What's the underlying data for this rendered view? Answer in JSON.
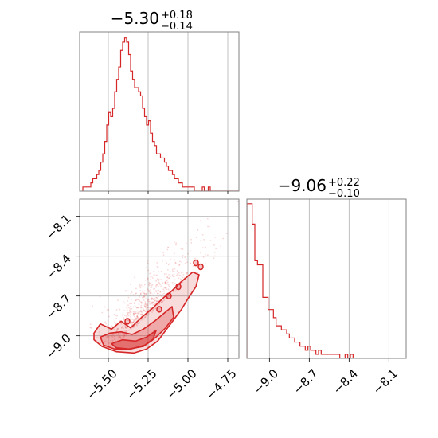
{
  "chart_data": [
    {
      "type": "histogram",
      "panel": "top-left",
      "title": {
        "median": "−5.30",
        "plus": "+0.18",
        "minus": "−0.14"
      },
      "xlim": [
        -5.68,
        -4.68
      ],
      "grid": true,
      "color": "#d62728",
      "bin_width": 0.0125,
      "x_start": -5.66,
      "counts": [
        1,
        1,
        1,
        1,
        2,
        3,
        3,
        4,
        5,
        7,
        9,
        12,
        16,
        19,
        18,
        20,
        24,
        27,
        30,
        34,
        36,
        37,
        36,
        33,
        29,
        27,
        25,
        25,
        24,
        23,
        20,
        18,
        16,
        17,
        14,
        12,
        11,
        9,
        9,
        8,
        8,
        7,
        6,
        5,
        5,
        4,
        3,
        3,
        2,
        2,
        1,
        1,
        1,
        1,
        1,
        1,
        0,
        0,
        0,
        0,
        1,
        0,
        0,
        1,
        0,
        0,
        0,
        0,
        0,
        0,
        0,
        0,
        0,
        0,
        0,
        0,
        0,
        0,
        0,
        0
      ]
    },
    {
      "type": "scatter",
      "panel": "bottom-left",
      "xlim": [
        -5.68,
        -4.68
      ],
      "ylim": [
        -9.17,
        -7.97
      ],
      "grid": true,
      "xticks": [
        "−5.50",
        "−5.25",
        "−5.00",
        "−4.75"
      ],
      "yticks": [
        "−9.0",
        "−8.7",
        "−8.4",
        "−8.1"
      ],
      "contours": [
        {
          "level": "outer",
          "points": [
            [
              -5.59,
              -8.98
            ],
            [
              -5.55,
              -8.91
            ],
            [
              -5.48,
              -8.95
            ],
            [
              -5.42,
              -8.89
            ],
            [
              -5.36,
              -8.94
            ],
            [
              -5.29,
              -8.86
            ],
            [
              -5.22,
              -8.79
            ],
            [
              -5.16,
              -8.72
            ],
            [
              -5.1,
              -8.66
            ],
            [
              -5.04,
              -8.59
            ],
            [
              -4.97,
              -8.52
            ],
            [
              -4.93,
              -8.54
            ],
            [
              -4.95,
              -8.63
            ],
            [
              -5.0,
              -8.72
            ],
            [
              -5.04,
              -8.8
            ],
            [
              -5.09,
              -8.88
            ],
            [
              -5.14,
              -8.96
            ],
            [
              -5.19,
              -9.04
            ],
            [
              -5.26,
              -9.1
            ],
            [
              -5.34,
              -9.13
            ],
            [
              -5.45,
              -9.12
            ],
            [
              -5.54,
              -9.08
            ],
            [
              -5.59,
              -9.03
            ]
          ]
        },
        {
          "level": "middle",
          "points": [
            [
              -5.55,
              -9.01
            ],
            [
              -5.49,
              -8.98
            ],
            [
              -5.42,
              -8.97
            ],
            [
              -5.35,
              -8.99
            ],
            [
              -5.28,
              -8.95
            ],
            [
              -5.21,
              -8.89
            ],
            [
              -5.15,
              -8.83
            ],
            [
              -5.1,
              -8.78
            ],
            [
              -5.09,
              -8.86
            ],
            [
              -5.14,
              -8.94
            ],
            [
              -5.2,
              -9.01
            ],
            [
              -5.27,
              -9.07
            ],
            [
              -5.36,
              -9.1
            ],
            [
              -5.46,
              -9.1
            ],
            [
              -5.53,
              -9.07
            ]
          ]
        },
        {
          "level": "inner",
          "points": [
            [
              -5.48,
              -9.06
            ],
            [
              -5.41,
              -9.03
            ],
            [
              -5.33,
              -9.04
            ],
            [
              -5.26,
              -9.01
            ],
            [
              -5.2,
              -8.96
            ],
            [
              -5.22,
              -9.03
            ],
            [
              -5.28,
              -9.08
            ],
            [
              -5.37,
              -9.1
            ],
            [
              -5.45,
              -9.09
            ]
          ]
        }
      ],
      "islands": [
        [
          -4.95,
          -8.45
        ],
        [
          -5.06,
          -8.63
        ],
        [
          -5.12,
          -8.7
        ],
        [
          -5.38,
          -8.89
        ],
        [
          -4.92,
          -8.48
        ],
        [
          -5.18,
          -8.8
        ]
      ]
    },
    {
      "type": "histogram",
      "panel": "bottom-right",
      "title": {
        "median": "−9.06",
        "plus": "+0.22",
        "minus": "−0.10"
      },
      "xlim": [
        -9.17,
        -7.97
      ],
      "grid": true,
      "color": "#d62728",
      "xticks": [
        "−9.0",
        "−8.7",
        "−8.4",
        "−8.1"
      ],
      "bin_width": 0.02,
      "x_start": -9.17,
      "counts": [
        38,
        38,
        33,
        24,
        23,
        23,
        15,
        15,
        12,
        12,
        10,
        8,
        8,
        7,
        7,
        6,
        5,
        5,
        4,
        4,
        3,
        3,
        2,
        3,
        2,
        2,
        1,
        2,
        1,
        1,
        1,
        1,
        1,
        1,
        1,
        0,
        0,
        1,
        0,
        1,
        0,
        0,
        0,
        0,
        0,
        0,
        0,
        0,
        0,
        0,
        0,
        0,
        0,
        0,
        0,
        0,
        0,
        0,
        0,
        0
      ]
    }
  ]
}
